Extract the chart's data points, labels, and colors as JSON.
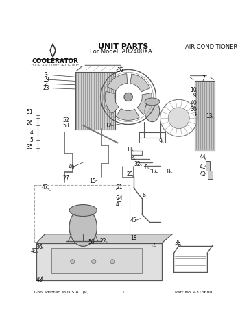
{
  "title": "UNIT PARTS",
  "subtitle": "For Model: AR2400XA1",
  "right_title": "AIR CONDITIONER",
  "footer_left": "7-86  Printed in U.S.A.  (R)",
  "footer_center": "1",
  "footer_right": "Part No. 4316680,",
  "brand": "COOLERATOR",
  "brand_tagline": "YOUR AIR COMFORT GUIDE",
  "bg_color": "#ffffff",
  "fig_width": 3.5,
  "fig_height": 4.86,
  "dpi": 100
}
